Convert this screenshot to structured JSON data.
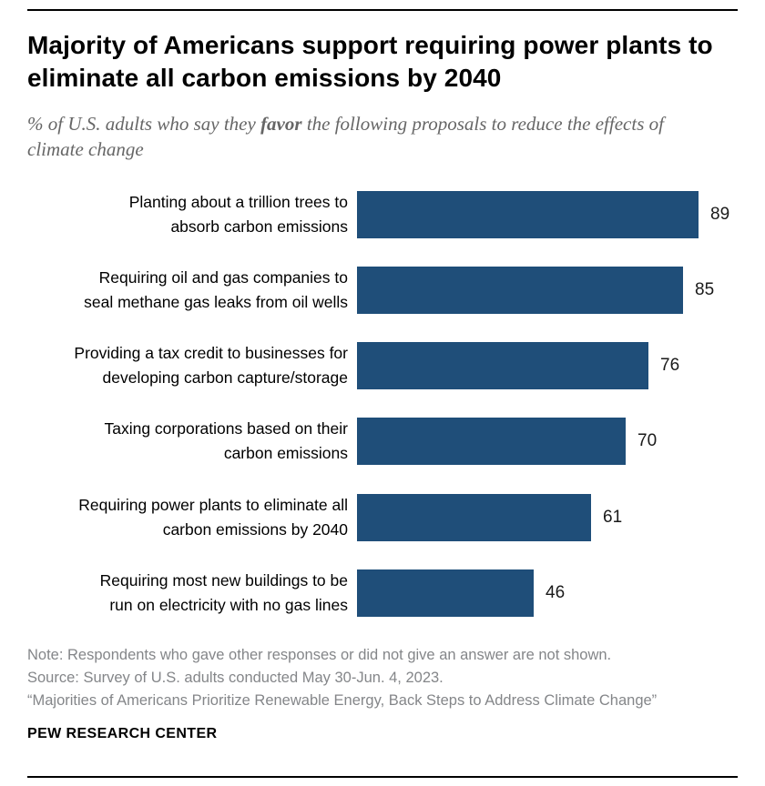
{
  "accent_color": "#1f4e79",
  "header": {
    "title": "Majority of Americans support requiring power plants to eliminate all carbon emissions by 2040",
    "subtitle_prefix": "% of U.S. adults who say they ",
    "subtitle_bold": "favor",
    "subtitle_suffix": " the following proposals to reduce the effects of climate change"
  },
  "chart_data": {
    "type": "bar",
    "orientation": "horizontal",
    "title": "Majority of Americans support requiring power plants to eliminate all carbon emissions by 2040",
    "categories": [
      [
        "Planting about a trillion trees to",
        "absorb carbon emissions"
      ],
      [
        "Requiring oil and gas companies to",
        "seal methane gas leaks from oil wells"
      ],
      [
        "Providing a tax credit to businesses for",
        "developing carbon capture/storage"
      ],
      [
        "Taxing corporations based on their",
        "carbon emissions"
      ],
      [
        "Requiring power plants to eliminate all",
        "carbon emissions by 2040"
      ],
      [
        "Requiring most new buildings to be",
        "run on electricity with no gas lines"
      ]
    ],
    "values": [
      89,
      85,
      76,
      70,
      61,
      46
    ],
    "xlim": [
      0,
      89
    ],
    "bar_color": "#1f4e79",
    "value_labels_shown": true,
    "grid": false,
    "legend": "none"
  },
  "footer": {
    "note": "Note: Respondents who gave other responses or did not give an answer are not shown.",
    "source": "Source: Survey of U.S. adults conducted May 30-Jun. 4, 2023.",
    "report": "“Majorities of Americans Prioritize Renewable Energy, Back Steps to Address Climate Change”",
    "brand": "PEW RESEARCH CENTER"
  }
}
